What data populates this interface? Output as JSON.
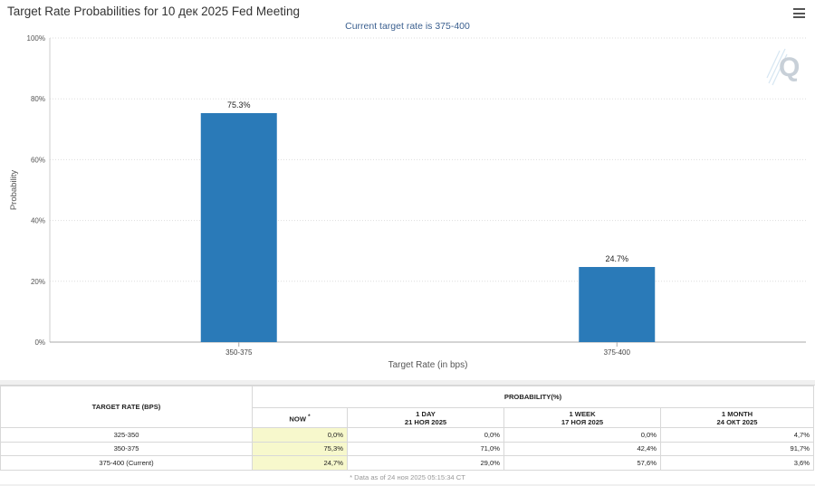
{
  "title": "Target Rate Probabilities for 10 дек 2025 Fed Meeting",
  "subtitle": "Current target rate is 375-400",
  "icons": {
    "menu": "hamburger-menu-icon",
    "watermark": "q-logo-watermark"
  },
  "colors": {
    "bar": "#2a7ab8",
    "subtitle": "#3a5f8f",
    "now_col": "#f7f8cc"
  },
  "chart_data": {
    "type": "bar",
    "categories": [
      "350-375",
      "375-400"
    ],
    "values": [
      75.3,
      24.7
    ],
    "data_labels": [
      "75.3%",
      "24.7%"
    ],
    "xlabel": "Target Rate (in bps)",
    "ylabel": "Probability",
    "ylim": [
      0,
      100
    ],
    "y_ticks": [
      0,
      20,
      40,
      60,
      80,
      100
    ],
    "y_tick_labels": [
      "0%",
      "20%",
      "40%",
      "60%",
      "80%",
      "100%"
    ],
    "grid": true,
    "legend": "none"
  },
  "table": {
    "col_rate": "TARGET RATE (BPS)",
    "col_prob": "PROBABILITY(%)",
    "now_label": "NOW",
    "now_mark": "*",
    "periods": [
      {
        "label": "1 DAY",
        "date": "21 НОЯ 2025"
      },
      {
        "label": "1 WEEK",
        "date": "17 НОЯ 2025"
      },
      {
        "label": "1 MONTH",
        "date": "24 ОКТ 2025"
      }
    ],
    "rows": [
      {
        "rate": "325-350",
        "values": [
          "0,0%",
          "0,0%",
          "0,0%",
          "4,7%"
        ]
      },
      {
        "rate": "350-375",
        "values": [
          "75,3%",
          "71,0%",
          "42,4%",
          "91,7%"
        ]
      },
      {
        "rate": "375-400 (Current)",
        "values": [
          "24,7%",
          "29,0%",
          "57,6%",
          "3,6%"
        ]
      }
    ],
    "footnote": "* Data as of 24 ноя 2025 05:15:34 CT"
  }
}
